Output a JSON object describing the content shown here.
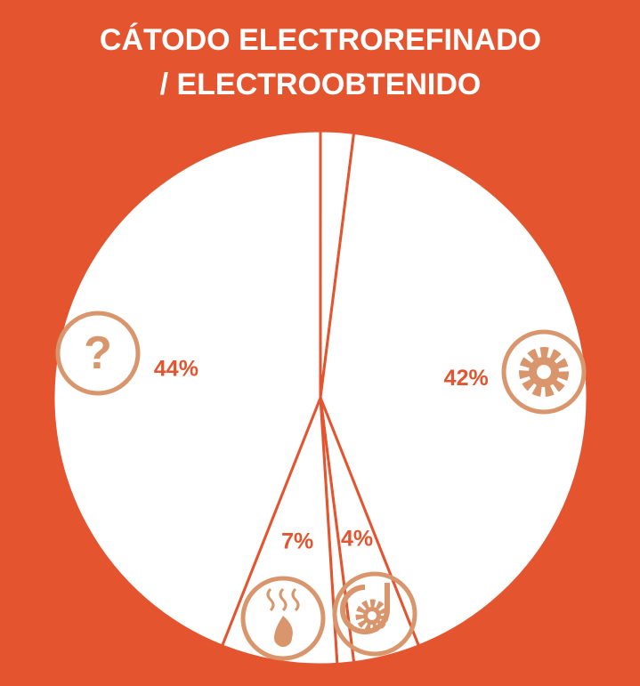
{
  "chart_data": {
    "type": "pie",
    "title": [
      "CÁTODO ELECTROREFINADO",
      "/ ELECTROOBTENIDO"
    ],
    "categories": [
      null,
      null,
      null,
      null,
      null,
      null
    ],
    "values": [
      2,
      42,
      4,
      1,
      7,
      44
    ],
    "value_labels": [
      null,
      "42%",
      "4%",
      null,
      "7%",
      "44%"
    ],
    "colors": [
      "#ffffff",
      "#ffffff",
      "#ffffff",
      "#ffffff",
      "#ffffff",
      "#ffffff"
    ],
    "edge_color": "#e4542f"
  }
}
